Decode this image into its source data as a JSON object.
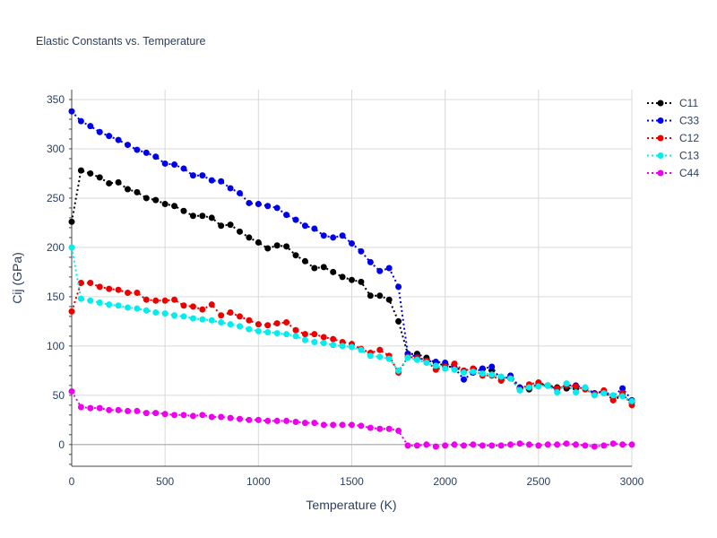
{
  "chart_data": {
    "type": "line",
    "title": "Elastic Constants vs. Temperature",
    "xlabel": "Temperature (K)",
    "ylabel": "Cij (GPa)",
    "xlim": [
      0,
      3000
    ],
    "ylim": [
      -22,
      360
    ],
    "xticks": [
      0,
      500,
      1000,
      1500,
      2000,
      2500,
      3000
    ],
    "yticks": [
      0,
      50,
      100,
      150,
      200,
      250,
      300,
      350
    ],
    "grid": true,
    "legend_position": "top-right",
    "series": [
      {
        "name": "C11",
        "color": "#000000",
        "x": [
          0,
          50,
          100,
          150,
          200,
          250,
          300,
          350,
          400,
          450,
          500,
          550,
          600,
          650,
          700,
          750,
          800,
          850,
          900,
          950,
          1000,
          1050,
          1100,
          1150,
          1200,
          1250,
          1300,
          1350,
          1400,
          1450,
          1500,
          1550,
          1600,
          1650,
          1700,
          1750,
          1800,
          1850,
          1900,
          1950,
          2000,
          2050,
          2100,
          2150,
          2200,
          2250,
          2300,
          2350,
          2400,
          2450,
          2500,
          2550,
          2600,
          2650,
          2700,
          2750,
          2800,
          2850,
          2900,
          2950,
          3000
        ],
        "y": [
          226,
          278,
          275,
          271,
          265,
          266,
          259,
          256,
          250,
          248,
          244,
          242,
          237,
          232,
          232,
          230,
          222,
          223,
          216,
          210,
          205,
          199,
          202,
          201,
          192,
          186,
          179,
          180,
          175,
          170,
          167,
          165,
          151,
          151,
          147,
          125,
          92,
          92,
          88,
          83,
          80,
          78,
          75,
          77,
          77,
          75,
          68,
          68,
          57,
          56,
          62,
          60,
          58,
          57,
          57,
          57,
          52,
          54,
          45,
          50,
          43
        ]
      },
      {
        "name": "C33",
        "color": "#0000ee",
        "x": [
          0,
          50,
          100,
          150,
          200,
          250,
          300,
          350,
          400,
          450,
          500,
          550,
          600,
          650,
          700,
          750,
          800,
          850,
          900,
          950,
          1000,
          1050,
          1100,
          1150,
          1200,
          1250,
          1300,
          1350,
          1400,
          1450,
          1500,
          1550,
          1600,
          1650,
          1700,
          1750,
          1800,
          1850,
          1900,
          1950,
          2000,
          2050,
          2100,
          2150,
          2200,
          2250,
          2300,
          2350,
          2400,
          2450,
          2500,
          2550,
          2600,
          2650,
          2700,
          2750,
          2800,
          2850,
          2900,
          2950,
          3000
        ],
        "y": [
          338,
          328,
          323,
          317,
          313,
          309,
          304,
          299,
          296,
          292,
          285,
          284,
          280,
          273,
          273,
          268,
          267,
          260,
          255,
          245,
          244,
          242,
          240,
          233,
          228,
          222,
          219,
          212,
          210,
          212,
          204,
          196,
          185,
          176,
          179,
          160,
          92,
          89,
          85,
          84,
          83,
          78,
          66,
          73,
          77,
          79,
          65,
          70,
          58,
          58,
          60,
          60,
          56,
          60,
          60,
          57,
          52,
          54,
          49,
          57,
          45
        ]
      },
      {
        "name": "C12",
        "color": "#ee0000",
        "x": [
          0,
          50,
          100,
          150,
          200,
          250,
          300,
          350,
          400,
          450,
          500,
          550,
          600,
          650,
          700,
          750,
          800,
          850,
          900,
          950,
          1000,
          1050,
          1100,
          1150,
          1200,
          1250,
          1300,
          1350,
          1400,
          1450,
          1500,
          1550,
          1600,
          1650,
          1700,
          1750,
          1800,
          1850,
          1900,
          1950,
          2000,
          2050,
          2100,
          2150,
          2200,
          2250,
          2300,
          2350,
          2400,
          2450,
          2500,
          2550,
          2600,
          2650,
          2700,
          2750,
          2800,
          2850,
          2900,
          2950,
          3000
        ],
        "y": [
          135,
          164,
          164,
          160,
          158,
          157,
          154,
          154,
          147,
          146,
          146,
          147,
          141,
          140,
          137,
          142,
          131,
          134,
          130,
          126,
          122,
          121,
          123,
          124,
          116,
          112,
          112,
          109,
          107,
          104,
          102,
          97,
          93,
          96,
          90,
          73,
          89,
          88,
          85,
          76,
          79,
          82,
          75,
          77,
          70,
          70,
          65,
          67,
          56,
          61,
          63,
          60,
          57,
          60,
          59,
          56,
          51,
          55,
          45,
          52,
          40
        ]
      },
      {
        "name": "C13",
        "color": "#00eeee",
        "x": [
          0,
          50,
          100,
          150,
          200,
          250,
          300,
          350,
          400,
          450,
          500,
          550,
          600,
          650,
          700,
          750,
          800,
          850,
          900,
          950,
          1000,
          1050,
          1100,
          1150,
          1200,
          1250,
          1300,
          1350,
          1400,
          1450,
          1500,
          1550,
          1600,
          1650,
          1700,
          1750,
          1800,
          1850,
          1900,
          1950,
          2000,
          2050,
          2100,
          2150,
          2200,
          2250,
          2300,
          2350,
          2400,
          2450,
          2500,
          2550,
          2600,
          2650,
          2700,
          2750,
          2800,
          2850,
          2900,
          2950,
          3000
        ],
        "y": [
          200,
          148,
          146,
          144,
          142,
          141,
          139,
          138,
          136,
          134,
          133,
          131,
          130,
          128,
          127,
          126,
          124,
          122,
          120,
          117,
          115,
          114,
          113,
          112,
          110,
          106,
          104,
          103,
          101,
          100,
          99,
          96,
          90,
          89,
          87,
          75,
          88,
          86,
          83,
          80,
          77,
          76,
          73,
          74,
          72,
          71,
          69,
          67,
          55,
          58,
          59,
          60,
          53,
          62,
          53,
          58,
          50,
          52,
          50,
          49,
          44
        ]
      },
      {
        "name": "C44",
        "color": "#ee00ee",
        "x": [
          0,
          50,
          100,
          150,
          200,
          250,
          300,
          350,
          400,
          450,
          500,
          550,
          600,
          650,
          700,
          750,
          800,
          850,
          900,
          950,
          1000,
          1050,
          1100,
          1150,
          1200,
          1250,
          1300,
          1350,
          1400,
          1450,
          1500,
          1550,
          1600,
          1650,
          1700,
          1750,
          1800,
          1850,
          1900,
          1950,
          2000,
          2050,
          2100,
          2150,
          2200,
          2250,
          2300,
          2350,
          2400,
          2450,
          2500,
          2550,
          2600,
          2650,
          2700,
          2750,
          2800,
          2850,
          2900,
          2950,
          3000
        ],
        "y": [
          54,
          38,
          37,
          37,
          35,
          35,
          34,
          34,
          32,
          32,
          31,
          30,
          30,
          29,
          30,
          28,
          28,
          27,
          26,
          25,
          25,
          24,
          24,
          24,
          23,
          22,
          22,
          20,
          20,
          20,
          20,
          19,
          17,
          16,
          16,
          14,
          -1,
          -1,
          0,
          -2,
          -1,
          0,
          -1,
          0,
          -1,
          -1,
          -1,
          0,
          1,
          0,
          -1,
          0,
          0,
          1,
          0,
          -1,
          -2,
          -1,
          1,
          0,
          0
        ]
      }
    ]
  }
}
